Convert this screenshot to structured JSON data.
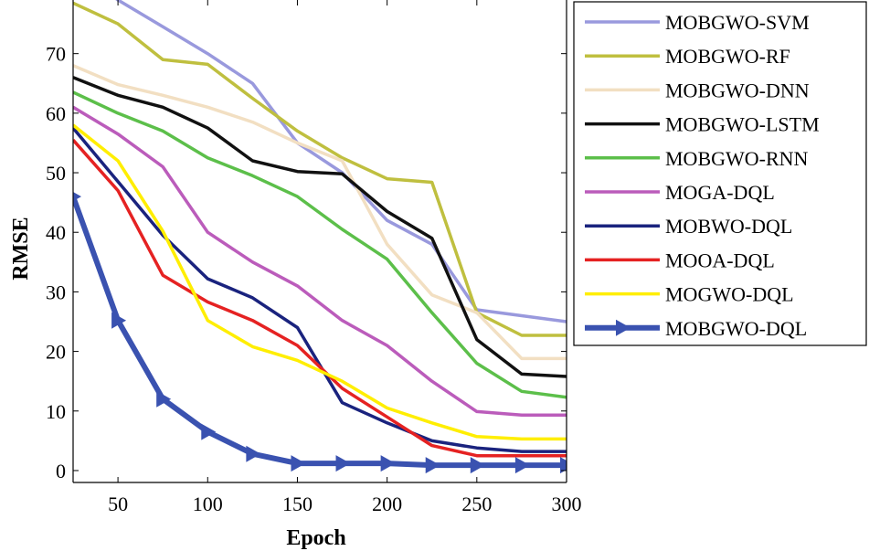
{
  "chart_data": {
    "type": "line",
    "title": "",
    "xlabel": "Epoch",
    "ylabel": "RMSE",
    "xlim": [
      25,
      300
    ],
    "ylim": [
      -2,
      79
    ],
    "xticks": [
      50,
      100,
      150,
      200,
      250,
      300
    ],
    "yticks": [
      0,
      10,
      20,
      30,
      40,
      50,
      60,
      70
    ],
    "grid": false,
    "legend_position": "right",
    "x": [
      25,
      50,
      75,
      100,
      125,
      150,
      175,
      200,
      225,
      250,
      275,
      300
    ],
    "series": [
      {
        "name": "MOBGWO-SVM",
        "color": "#9999dd",
        "values": [
          85,
          79,
          74.5,
          70,
          65,
          55,
          50,
          42,
          38,
          27,
          26,
          25
        ]
      },
      {
        "name": "MOBGWO-RF",
        "color": "#bfbf3f",
        "values": [
          78.5,
          75,
          69,
          68.2,
          62.5,
          57,
          52.5,
          49,
          48.4,
          26.5,
          22.7,
          22.7
        ]
      },
      {
        "name": "MOBGWO-DNN",
        "color": "#f2dfc2",
        "values": [
          68,
          64.8,
          63,
          61,
          58.5,
          55,
          52,
          38,
          29.5,
          26.5,
          18.8,
          18.8
        ]
      },
      {
        "name": "MOBGWO-LSTM",
        "color": "#111111",
        "values": [
          66,
          63,
          61,
          57.5,
          52,
          50.2,
          49.8,
          43.5,
          39,
          22,
          16.2,
          15.8
        ]
      },
      {
        "name": "MOBGWO-RNN",
        "color": "#5cbf4a",
        "values": [
          63.5,
          60,
          57,
          52.5,
          49.5,
          46,
          40.5,
          35.5,
          26.5,
          18,
          13.3,
          12.3
        ]
      },
      {
        "name": "MOGA-DQL",
        "color": "#bb5cbb",
        "values": [
          61,
          56.5,
          51,
          40,
          35,
          31,
          25.2,
          21,
          15,
          9.9,
          9.3,
          9.3
        ]
      },
      {
        "name": "MOBWO-DQL",
        "color": "#1a237e",
        "values": [
          57.5,
          48.5,
          39.5,
          32.2,
          29,
          24,
          11.4,
          8,
          5,
          3.8,
          3.2,
          3.2
        ]
      },
      {
        "name": "MOOA-DQL",
        "color": "#e52222",
        "values": [
          55.5,
          47,
          32.8,
          28.3,
          25.2,
          21,
          13.8,
          9,
          4.2,
          2.5,
          2.5,
          2.5
        ]
      },
      {
        "name": "MOGWO-DQL",
        "color": "#ffee00",
        "values": [
          58,
          52,
          40.2,
          25.2,
          20.8,
          18.5,
          15,
          10.5,
          8,
          5.7,
          5.3,
          5.3
        ]
      },
      {
        "name": "MOBGWO-DQL",
        "color": "#3a52b0",
        "marker": "right-triangle",
        "values": [
          46,
          25.2,
          12,
          6.5,
          2.8,
          1.2,
          1.2,
          1.2,
          0.9,
          0.9,
          0.9,
          0.9
        ]
      }
    ]
  }
}
